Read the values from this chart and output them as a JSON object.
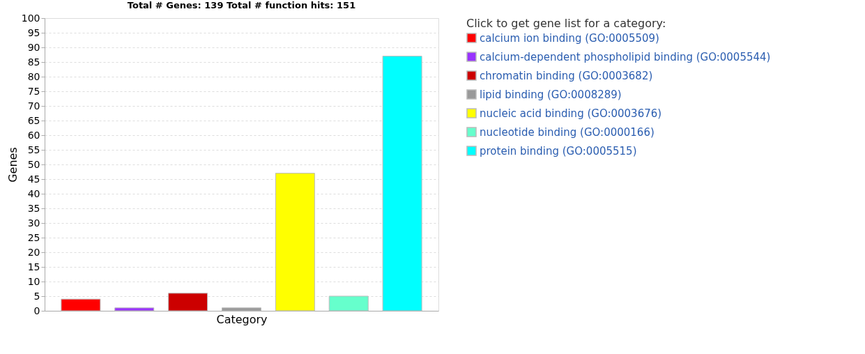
{
  "chart_data": {
    "type": "bar",
    "title": "Total # Genes: 139    Total # function hits: 151",
    "xlabel": "Category",
    "ylabel": "Genes",
    "legend_title": "Click to get gene list for a category:",
    "categories": [
      null,
      null,
      null,
      null,
      null,
      null,
      null
    ],
    "series": [
      {
        "name": "calcium ion binding (GO:0005509)",
        "color": "#ff0000",
        "values": [
          4,
          null,
          null,
          null,
          null,
          null,
          null
        ]
      },
      {
        "name": "calcium-dependent phospholipid binding (GO:0005544)",
        "color": "#9933ff",
        "values": [
          null,
          1,
          null,
          null,
          null,
          null,
          null
        ]
      },
      {
        "name": "chromatin binding (GO:0003682)",
        "color": "#cc0000",
        "values": [
          null,
          null,
          6,
          null,
          null,
          null,
          null
        ]
      },
      {
        "name": "lipid binding (GO:0008289)",
        "color": "#999999",
        "values": [
          null,
          null,
          null,
          1,
          null,
          null,
          null
        ]
      },
      {
        "name": "nucleic acid binding (GO:0003676)",
        "color": "#ffff00",
        "values": [
          null,
          null,
          null,
          null,
          47,
          null,
          null
        ]
      },
      {
        "name": "nucleotide binding (GO:0000166)",
        "color": "#66ffcc",
        "values": [
          null,
          null,
          null,
          null,
          null,
          5,
          null
        ]
      },
      {
        "name": "protein binding (GO:0005515)",
        "color": "#00ffff",
        "values": [
          null,
          null,
          null,
          null,
          null,
          null,
          87
        ]
      }
    ],
    "ylim": [
      0,
      100
    ],
    "yticks": [
      0,
      5,
      10,
      15,
      20,
      25,
      30,
      35,
      40,
      45,
      50,
      55,
      60,
      65,
      70,
      75,
      80,
      85,
      90,
      95,
      100
    ],
    "grid": "y",
    "legend": "right",
    "tick_labels": "y"
  }
}
